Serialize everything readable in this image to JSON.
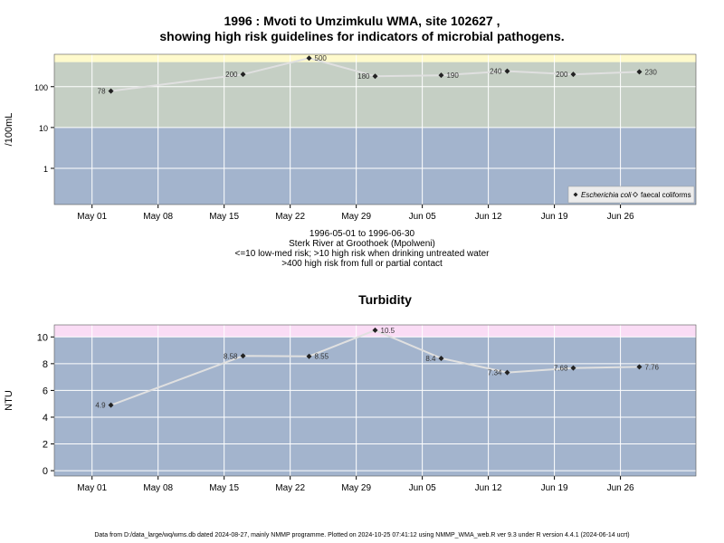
{
  "header": {
    "title_line1": "1996 : Mvoti to Umzimkulu WMA, site 102627 ,",
    "title_line2": "showing high risk guidelines for indicators of microbial pathogens."
  },
  "subtitle": {
    "line1": "1996-05-01 to 1996-06-30",
    "line2": "Sterk River at Groothoek (Mpolweni)",
    "line3": "<=10 low-med risk; >10 high risk when drinking untreated water",
    "line4": ">400 high risk from full or partial contact"
  },
  "footer": {
    "text": "Data from D:/data_large/wq/wms.db dated 2024-08-27, mainly NMMP programme. Plotted on 2024-10-25 07:41:12 using NMMP_WMA_web.R ver 9.3 under R version 4.4.1 (2024-06-14 ucrt)"
  },
  "colors": {
    "low_band": "#a3b4cd",
    "mid_band": "#c5cfc4",
    "high_band_micro": "#fffacc",
    "high_band_turb": "#fadcf5",
    "line": "#e0e0e0",
    "point": "#222222"
  },
  "chart_data": [
    {
      "type": "line",
      "title": "",
      "ylabel": "/100mL",
      "xlabel": "",
      "y_scale": "log",
      "ylim": [
        0.13,
        620
      ],
      "xlim": [
        "1996-04-27",
        "1996-07-04"
      ],
      "x_ticks": [
        "1996-05-01",
        "1996-05-08",
        "1996-05-15",
        "1996-05-22",
        "1996-05-29",
        "1996-06-05",
        "1996-06-12",
        "1996-06-19",
        "1996-06-26"
      ],
      "x_tick_labels": [
        "May 01",
        "May 08",
        "May 15",
        "May 22",
        "May 29",
        "Jun 05",
        "Jun 12",
        "Jun 19",
        "Jun 26"
      ],
      "y_ticks": [
        1,
        10,
        100
      ],
      "y_tick_labels": [
        "1",
        "10",
        "100"
      ],
      "bands": [
        {
          "from": 0.13,
          "to": 10,
          "color": "#a3b4cd"
        },
        {
          "from": 10,
          "to": 400,
          "color": "#c5cfc4"
        },
        {
          "from": 400,
          "to": 620,
          "color": "#fffacc"
        }
      ],
      "legend": {
        "placement": "bottom-right",
        "entries": [
          "Escherichia coli",
          "faecal coliforms"
        ]
      },
      "series": [
        {
          "name": "Escherichia coli",
          "marker": "filled-diamond",
          "x": [
            "1996-05-03",
            "1996-05-17",
            "1996-05-24",
            "1996-05-31",
            "1996-06-07",
            "1996-06-14",
            "1996-06-21",
            "1996-06-28"
          ],
          "y": [
            78,
            200,
            500,
            180,
            190,
            240,
            200,
            230
          ],
          "labels": [
            "78",
            "200",
            "500",
            "180",
            "190",
            "240",
            "200",
            "230"
          ],
          "label_side": [
            "left",
            "left",
            "right",
            "left",
            "right",
            "left",
            "left",
            "right"
          ]
        }
      ]
    },
    {
      "type": "line",
      "title": "Turbidity",
      "ylabel": "NTU",
      "xlabel": "",
      "y_scale": "linear",
      "ylim": [
        -0.4,
        10.9
      ],
      "xlim": [
        "1996-04-27",
        "1996-07-04"
      ],
      "x_ticks": [
        "1996-05-01",
        "1996-05-08",
        "1996-05-15",
        "1996-05-22",
        "1996-05-29",
        "1996-06-05",
        "1996-06-12",
        "1996-06-19",
        "1996-06-26"
      ],
      "x_tick_labels": [
        "May 01",
        "May 08",
        "May 15",
        "May 22",
        "May 29",
        "Jun 05",
        "Jun 12",
        "Jun 19",
        "Jun 26"
      ],
      "y_ticks": [
        0,
        2,
        4,
        6,
        8,
        10
      ],
      "y_tick_labels": [
        "0",
        "2",
        "4",
        "6",
        "8",
        "10"
      ],
      "bands": [
        {
          "from": -0.4,
          "to": 10,
          "color": "#a3b4cd"
        },
        {
          "from": 10,
          "to": 10.9,
          "color": "#fadcf5"
        }
      ],
      "series": [
        {
          "name": "Turbidity",
          "marker": "filled-diamond",
          "x": [
            "1996-05-03",
            "1996-05-17",
            "1996-05-24",
            "1996-05-31",
            "1996-06-07",
            "1996-06-14",
            "1996-06-21",
            "1996-06-28"
          ],
          "y": [
            4.9,
            8.58,
            8.55,
            10.5,
            8.4,
            7.34,
            7.68,
            7.76
          ],
          "labels": [
            "4.9",
            "8.58",
            "8.55",
            "10.5",
            "8.4",
            "7.34",
            "7.68",
            "7.76"
          ],
          "label_side": [
            "left",
            "left",
            "right",
            "right",
            "left",
            "left",
            "left",
            "right"
          ]
        }
      ]
    }
  ]
}
